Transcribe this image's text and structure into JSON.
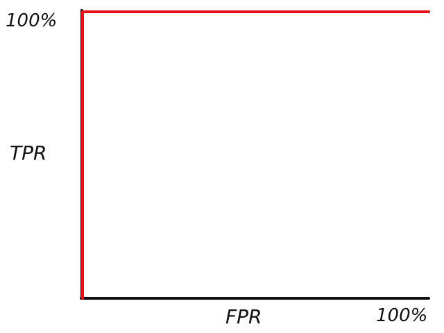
{
  "chart_data": {
    "type": "line",
    "title": "",
    "xlabel": "FPR",
    "ylabel": "TPR",
    "xlim": [
      0,
      100
    ],
    "ylim": [
      0,
      100
    ],
    "grid": false,
    "x_end_tick": "100%",
    "y_end_tick": "100%",
    "series": [
      {
        "color": "#e3101a",
        "x": [
          0,
          0,
          100
        ],
        "y": [
          0,
          100,
          100
        ]
      }
    ]
  },
  "colors": {
    "axis": "#111111",
    "curve": "#e3101a"
  }
}
